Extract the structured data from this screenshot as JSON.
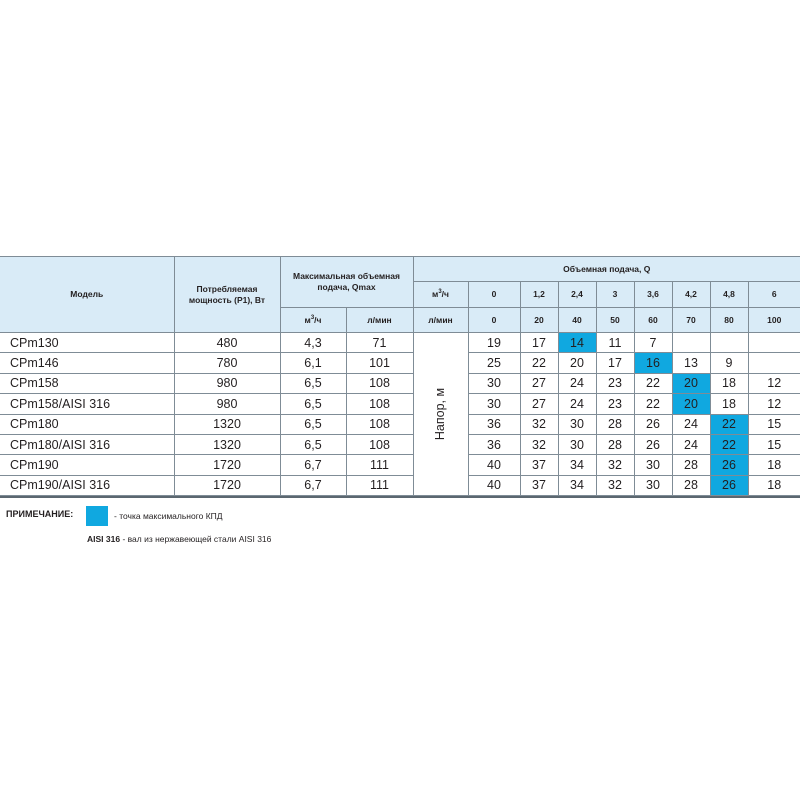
{
  "header": {
    "model": "Модель",
    "power": "Потребляемая мощность (Р1), Вт",
    "qmax": "Максимальная объемная подача, Qmax",
    "qmax_unit_m3": "м",
    "qmax_unit_m3_sup": "3",
    "qmax_unit_m3_tail": "/ч",
    "qmax_unit_lmin": "л/мин",
    "flow": "Объемная подача, Q",
    "unit_m3": "м",
    "unit_m3_sup": "3",
    "unit_m3_tail": "/ч",
    "unit_lmin": "л/мин",
    "head_label": "Напор, м"
  },
  "flow_m3h": [
    "0",
    "1,2",
    "2,4",
    "3",
    "3,6",
    "4,2",
    "4,8",
    "6"
  ],
  "flow_lmin": [
    "0",
    "20",
    "40",
    "50",
    "60",
    "70",
    "80",
    "100"
  ],
  "rows": [
    {
      "model": "СРm130",
      "power": "480",
      "qmax_m3h": "4,3",
      "qmax_lmin": "71",
      "heads": [
        "19",
        "17",
        "14",
        "11",
        "7",
        "",
        "",
        ""
      ],
      "eff": 2
    },
    {
      "model": "СРm146",
      "power": "780",
      "qmax_m3h": "6,1",
      "qmax_lmin": "101",
      "heads": [
        "25",
        "22",
        "20",
        "17",
        "16",
        "13",
        "9",
        ""
      ],
      "eff": 4
    },
    {
      "model": "СРm158",
      "power": "980",
      "qmax_m3h": "6,5",
      "qmax_lmin": "108",
      "heads": [
        "30",
        "27",
        "24",
        "23",
        "22",
        "20",
        "18",
        "12"
      ],
      "eff": 5
    },
    {
      "model": "СРm158/AISI 316",
      "power": "980",
      "qmax_m3h": "6,5",
      "qmax_lmin": "108",
      "heads": [
        "30",
        "27",
        "24",
        "23",
        "22",
        "20",
        "18",
        "12"
      ],
      "eff": 5
    },
    {
      "model": "СРm180",
      "power": "1320",
      "qmax_m3h": "6,5",
      "qmax_lmin": "108",
      "heads": [
        "36",
        "32",
        "30",
        "28",
        "26",
        "24",
        "22",
        "15"
      ],
      "eff": 6
    },
    {
      "model": "СРm180/AISI 316",
      "power": "1320",
      "qmax_m3h": "6,5",
      "qmax_lmin": "108",
      "heads": [
        "36",
        "32",
        "30",
        "28",
        "26",
        "24",
        "22",
        "15"
      ],
      "eff": 6
    },
    {
      "model": "СРm190",
      "power": "1720",
      "qmax_m3h": "6,7",
      "qmax_lmin": "111",
      "heads": [
        "40",
        "37",
        "34",
        "32",
        "30",
        "28",
        "26",
        "18"
      ],
      "eff": 6
    },
    {
      "model": "СРm190/AISI 316",
      "power": "1720",
      "qmax_m3h": "6,7",
      "qmax_lmin": "111",
      "heads": [
        "40",
        "37",
        "34",
        "32",
        "30",
        "28",
        "26",
        "18"
      ],
      "eff": 6
    }
  ],
  "notes": {
    "label": "ПРИМЕЧАНИЕ:",
    "legend": "- точка максимального КПД",
    "aisi_bold": "AISI 316",
    "aisi_text": " - вал из нержавеющей стали AISI 316"
  },
  "colors": {
    "header_bg": "#d9ebf7",
    "efficiency": "#10a8e0"
  }
}
